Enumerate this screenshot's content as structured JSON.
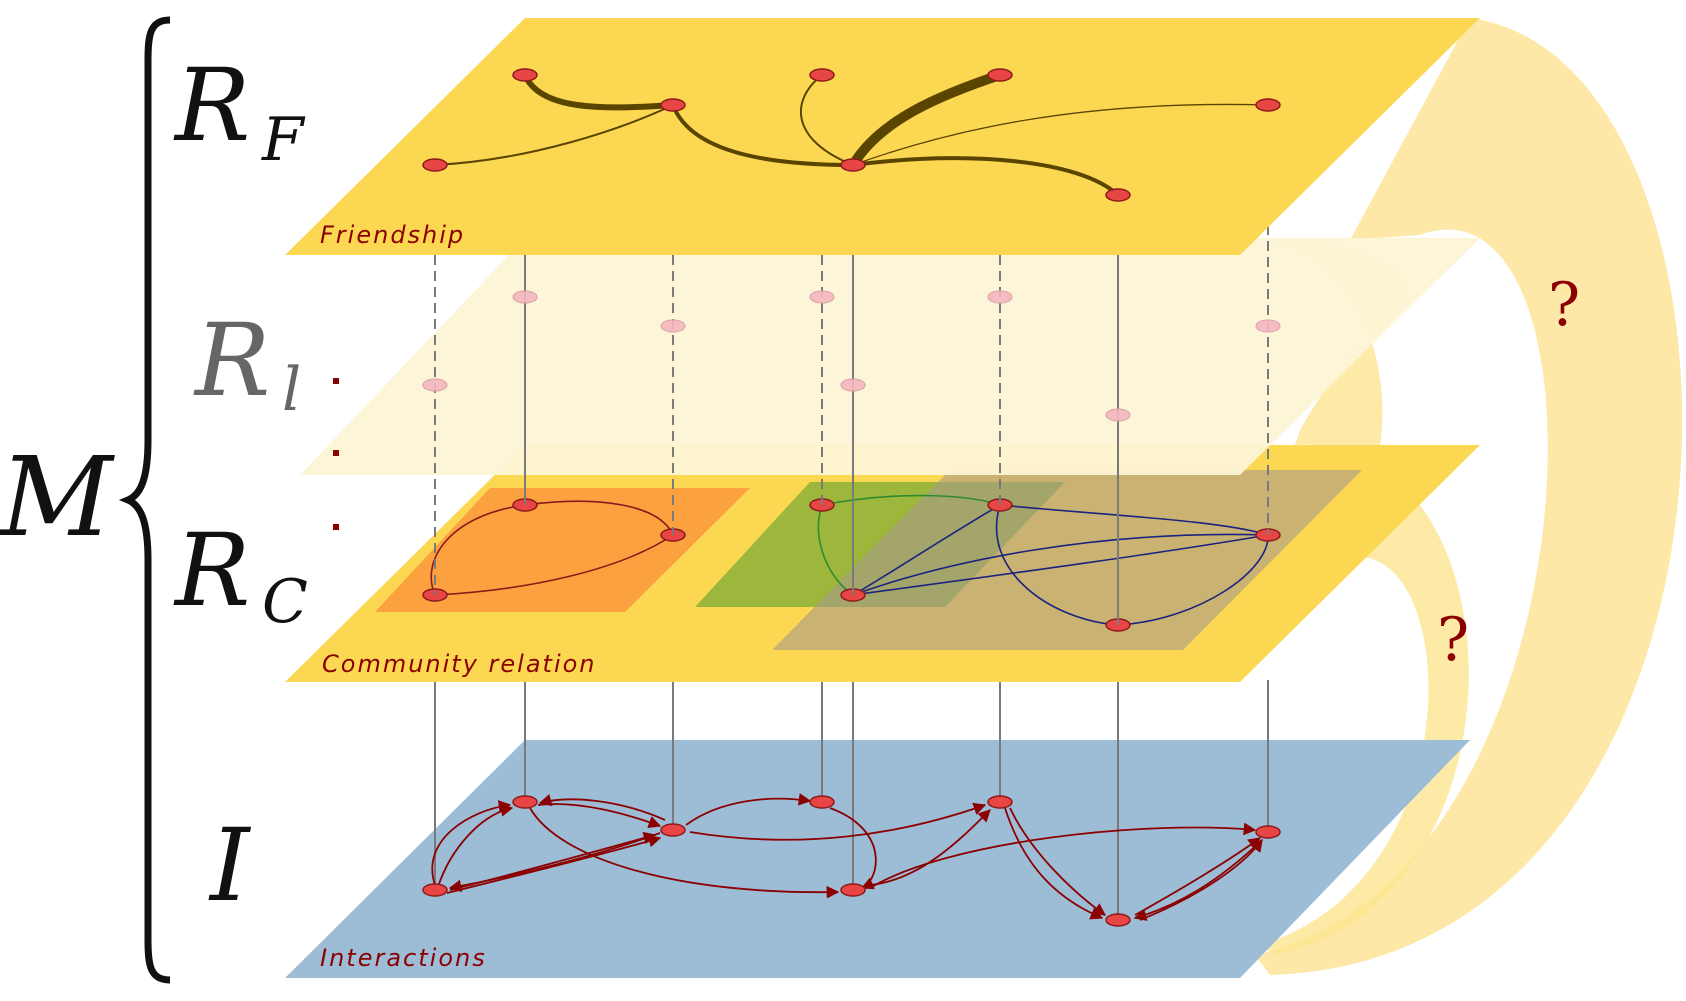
{
  "labels": {
    "multiplex": "M",
    "friendship_symbol": "R",
    "friendship_sub": "F",
    "l_symbol": "R",
    "l_sub": "l",
    "community_symbol": "R",
    "community_sub": "C",
    "interaction_symbol": "I",
    "question_top": "?",
    "question_bottom": "?"
  },
  "layers": {
    "friendship": {
      "name": "Friendship",
      "color": "#fcd852"
    },
    "intermediate": {
      "color": "#fdf4d6"
    },
    "community": {
      "name": "Community relation",
      "color": "#fcd852"
    },
    "interactions": {
      "name": "Interactions",
      "color": "#9dbcd6"
    }
  },
  "community_groups": [
    {
      "color": "#fb9e3e"
    },
    {
      "color": "#a4bb39"
    },
    {
      "color": "#bfa57e"
    }
  ],
  "colors": {
    "node": "#e84545",
    "friendship_edge": "#5a4500",
    "community_edge_1": "#8b1a1a",
    "community_edge_2": "#2e8b2e",
    "community_edge_3": "#1a237e",
    "interaction_edge": "#8b0000",
    "label_text": "#8b0000",
    "arrow_band": "#fde590"
  }
}
